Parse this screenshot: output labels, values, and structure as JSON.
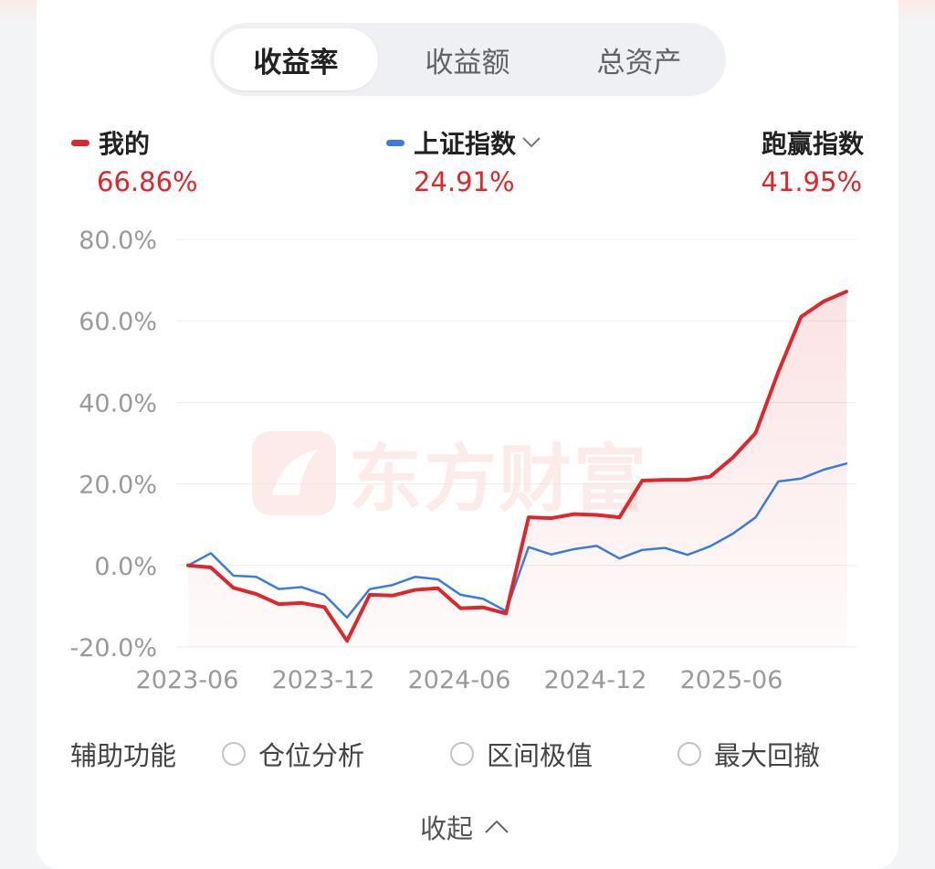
{
  "tabs": [
    {
      "label": "收益率",
      "active": true
    },
    {
      "label": "收益额",
      "active": false
    },
    {
      "label": "总资产",
      "active": false
    }
  ],
  "legend": {
    "mine": {
      "label": "我的",
      "value": "66.86%",
      "color": "#e0262b"
    },
    "index": {
      "label": "上证指数",
      "value": "24.91%",
      "color": "#3b7bdb"
    },
    "beat": {
      "label": "跑赢指数",
      "value": "41.95%"
    }
  },
  "watermark": "东方财富",
  "auxiliary": {
    "title": "辅助功能",
    "options": [
      "仓位分析",
      "区间极值",
      "最大回撤"
    ]
  },
  "collapse_label": "收起",
  "chart_data": {
    "type": "line",
    "yticks": [
      "80.0%",
      "60.0%",
      "40.0%",
      "20.0%",
      "0.0%",
      "-20.0%"
    ],
    "ylim": [
      -20,
      80
    ],
    "xticks": [
      "2023-06",
      "2023-12",
      "2024-06",
      "2024-12",
      "2025-06"
    ],
    "grid": true,
    "series": [
      {
        "name": "我的",
        "color": "#e0262b",
        "area": true,
        "values": [
          0,
          -0.5,
          -5.5,
          -7,
          -9.5,
          -9.2,
          -10.2,
          -18.5,
          -7.2,
          -7.4,
          -6,
          -5.6,
          -10.5,
          -10.3,
          -11.8,
          11.8,
          11.6,
          12.6,
          12.4,
          11.8,
          20.8,
          21,
          21,
          21.8,
          26.5,
          32.5,
          47.5,
          61,
          64.8,
          67.2
        ]
      },
      {
        "name": "上证指数",
        "color": "#3b7bdb",
        "area": false,
        "values": [
          0,
          3,
          -2.5,
          -2.8,
          -5.8,
          -5.3,
          -7.2,
          -12.8,
          -5.8,
          -4.8,
          -2.8,
          -3.4,
          -7.2,
          -8.2,
          -11.2,
          4.5,
          2.7,
          4,
          4.8,
          1.7,
          3.8,
          4.3,
          2.6,
          4.7,
          7.8,
          11.8,
          20.6,
          21.3,
          23.5,
          25
        ]
      }
    ]
  }
}
